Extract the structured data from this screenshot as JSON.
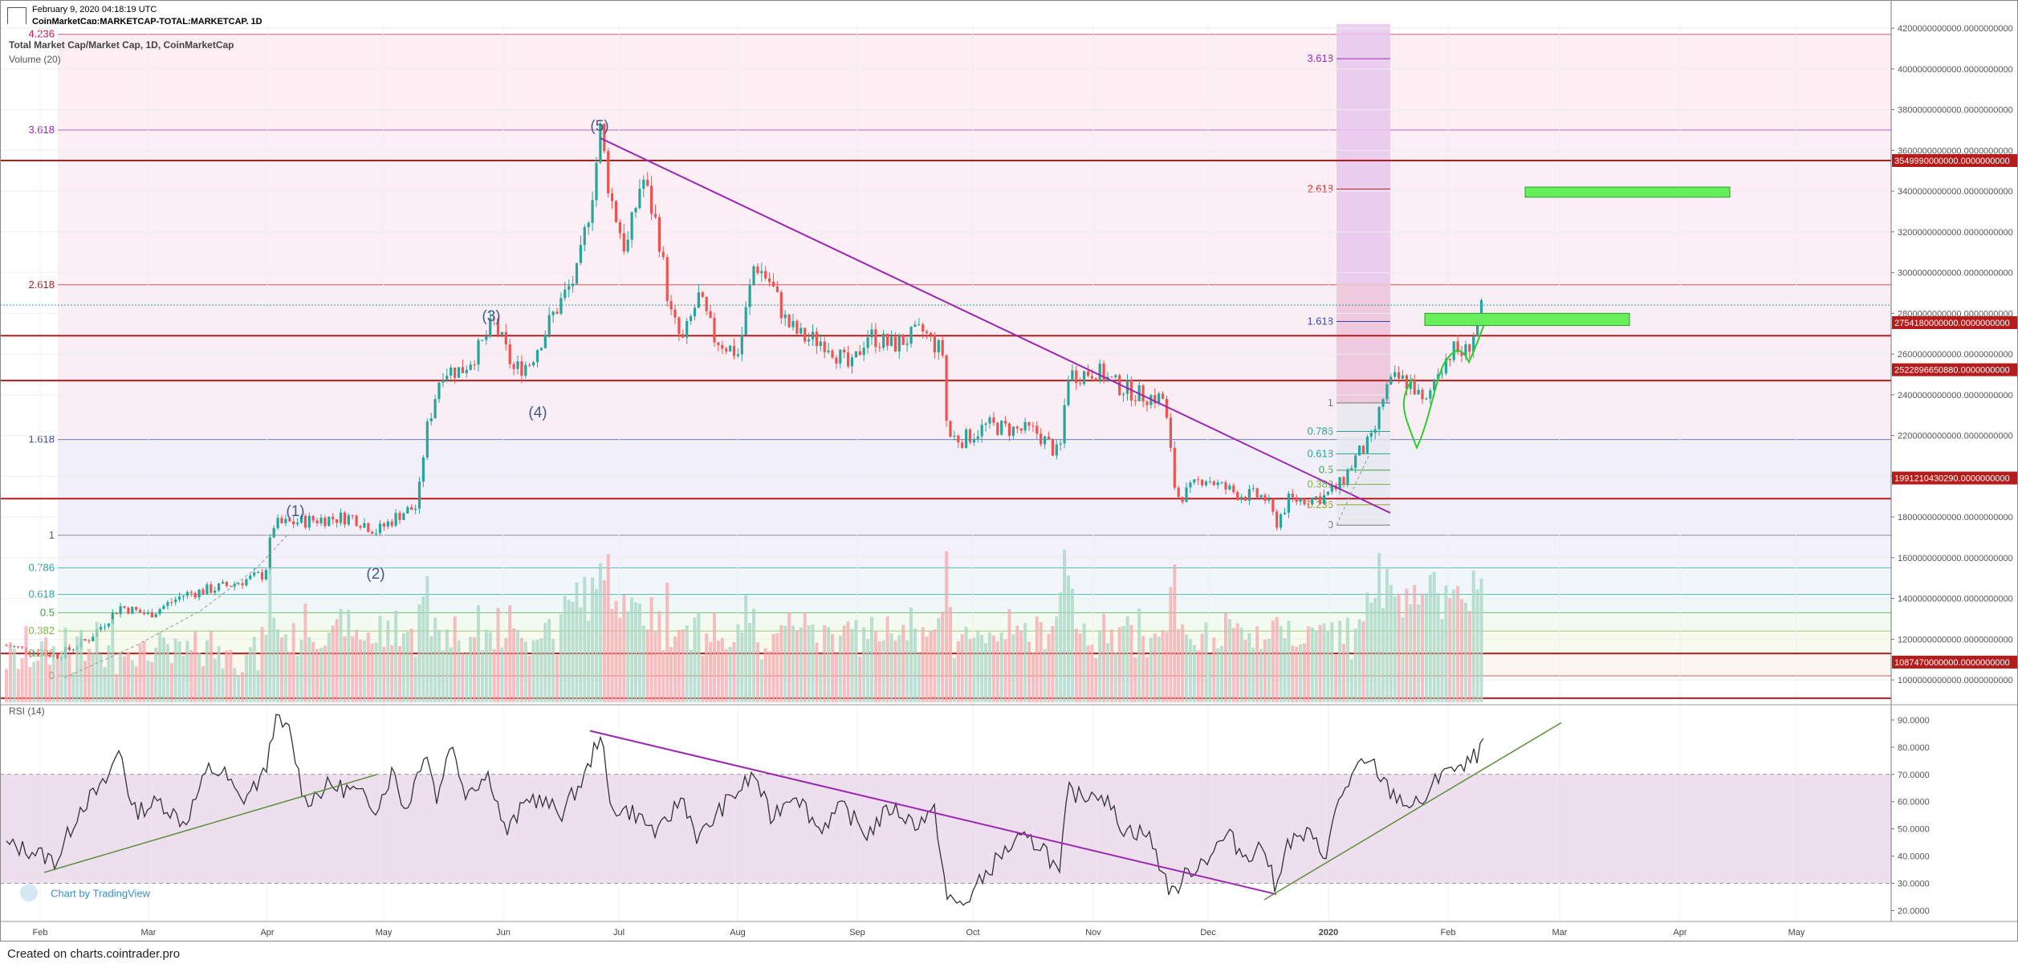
{
  "header": {
    "timestamp": "February 9, 2020 04:18:19 UTC",
    "symbol": "CoinMarketCap:MARKETCAP-TOTAL:MARKETCAP, 1D",
    "chart_title": "Total Market Cap/Market Cap, 1D, CoinMarketCap",
    "volume_label": "Volume (20)",
    "rsi_label": "RSI (14)",
    "tradingview_label": "Chart by TradingView"
  },
  "footer": {
    "text": "Created on charts.cointrader.pro"
  },
  "colors": {
    "up": "#26a69a",
    "down": "#ef5350",
    "trendline": "#9c27b0",
    "support": "#b71c1c",
    "target_box": "#66ef5a",
    "rsi_line": "#333333",
    "rsi_band": "#e8d4ea",
    "rsi_trend_green": "#5a8f3a"
  },
  "chart_data": [
    {
      "type": "candlestick",
      "title": "Total Market Cap/Market Cap, 1D, CoinMarketCap",
      "y_axis_ticks": [
        "4200000000000.0000000000",
        "4000000000000.0000000000",
        "3800000000000.0000000000",
        "3600000000000.0000000000",
        "3400000000000.0000000000",
        "3200000000000.0000000000",
        "3000000000000.0000000000",
        "2800000000000.0000000000",
        "2600000000000.0000000000",
        "2400000000000.0000000000",
        "2200000000000.0000000000",
        "2000000000000.0000000000",
        "1800000000000.0000000000",
        "1600000000000.0000000000",
        "1400000000000.0000000000",
        "1200000000000.0000000000",
        "1000000000000.0000000000"
      ],
      "ylim": [
        890000000000,
        4220000000000
      ],
      "x_ticks": [
        "Feb",
        "Mar",
        "Apr",
        "May",
        "Jun",
        "Jul",
        "Aug",
        "Sep",
        "Oct",
        "Nov",
        "Dec",
        "2020",
        "Feb",
        "Mar",
        "Apr",
        "May"
      ],
      "price_tags": [
        {
          "label": "3549990000000.0000000000",
          "value": 3549990000000
        },
        {
          "label": "2754180000000.0000000000",
          "value": 2754180000000
        },
        {
          "label": "2522896650880.0000000000",
          "value": 2522896650880
        },
        {
          "label": "1991210430290.0000000000",
          "value": 1991210430290
        },
        {
          "label": "1087470000000.0000000000",
          "value": 1087470000000
        }
      ],
      "support_lines": [
        3549990000000,
        2690000000000,
        2470000000000,
        1890000000000,
        1130000000000,
        910000000000
      ],
      "fib_left_labels": [
        {
          "label": "4.236",
          "value": 4170000000000
        },
        {
          "label": "3.618",
          "value": 3700000000000
        },
        {
          "label": "2.618",
          "value": 2940000000000
        },
        {
          "label": "1.618",
          "value": 2180000000000
        },
        {
          "label": "1",
          "value": 1710000000000
        },
        {
          "label": "0.786",
          "value": 1550000000000
        },
        {
          "label": "0.618",
          "value": 1420000000000
        },
        {
          "label": "0.5",
          "value": 1330000000000
        },
        {
          "label": "0.382",
          "value": 1240000000000
        },
        {
          "label": "0.236",
          "value": 1130000000000
        },
        {
          "label": "0",
          "value": 1020000000000
        }
      ],
      "fib_right_labels": [
        {
          "label": "3.618",
          "value": 4050000000000
        },
        {
          "label": "2.618",
          "value": 3410000000000
        },
        {
          "label": "1.618",
          "value": 2760000000000
        },
        {
          "label": "1",
          "value": 2360000000000
        },
        {
          "label": "0.786",
          "value": 2220000000000
        },
        {
          "label": "0.618",
          "value": 2110000000000
        },
        {
          "label": "0.5",
          "value": 2030000000000
        },
        {
          "label": "0.382",
          "value": 1960000000000
        },
        {
          "label": "0.236",
          "value": 1860000000000
        },
        {
          "label": "0",
          "value": 1760000000000
        }
      ],
      "wave_labels": [
        "(1)",
        "(2)",
        "(3)",
        "(4)",
        "(5)"
      ],
      "target_zones": [
        {
          "from": "Feb",
          "to": "Mar",
          "low": 3370000000000,
          "high": 3420000000000
        },
        {
          "from": "Jan",
          "to": "Mar",
          "low": 2740000000000,
          "high": 2800000000000
        }
      ],
      "series": [
        {
          "name": "close",
          "points": [
            [
              "Feb",
              1150000000000
            ],
            [
              "Mar",
              1350000000000
            ],
            [
              "Apr",
              1600000000000
            ],
            [
              "Apr-15",
              1800000000000
            ],
            [
              "May",
              1780000000000
            ],
            [
              "May-15",
              2300000000000
            ],
            [
              "Jun",
              2750000000000
            ],
            [
              "Jun-15",
              2550000000000
            ],
            [
              "Jun-26",
              3650000000000
            ],
            [
              "Jul",
              3300000000000
            ],
            [
              "Jul-15",
              2650000000000
            ],
            [
              "Aug",
              2600000000000
            ],
            [
              "Aug-10",
              3050000000000
            ],
            [
              "Sep",
              2550000000000
            ],
            [
              "Sep-20",
              2650000000000
            ],
            [
              "Oct",
              2200000000000
            ],
            [
              "Oct-25",
              2500000000000
            ],
            [
              "Nov",
              2420000000000
            ],
            [
              "Dec",
              1900000000000
            ],
            [
              "Dec-18",
              1760000000000
            ],
            [
              "2020",
              1900000000000
            ],
            [
              "Jan-15",
              2450000000000
            ],
            [
              "Jan-25",
              2350000000000
            ],
            [
              "Feb-08",
              2840000000000
            ]
          ]
        }
      ]
    },
    {
      "type": "line",
      "title": "RSI (14)",
      "y_axis_ticks": [
        "90.0000",
        "80.0000",
        "70.0000",
        "60.0000",
        "50.0000",
        "40.0000",
        "30.0000",
        "20.0000"
      ],
      "ylim": [
        16,
        95
      ],
      "overbought": 70,
      "oversold": 30,
      "series": [
        {
          "name": "RSI",
          "points": [
            [
              "Feb",
              44
            ],
            [
              "Feb-15",
              38
            ],
            [
              "Mar",
              64
            ],
            [
              "Mar-10",
              54
            ],
            [
              "Mar-20",
              68
            ],
            [
              "Apr",
              70
            ],
            [
              "Apr-05",
              88
            ],
            [
              "Apr-15",
              86
            ],
            [
              "Apr-20",
              68
            ],
            [
              "May",
              48
            ],
            [
              "May-10",
              62
            ],
            [
              "May-20",
              80
            ],
            [
              "Jun",
              68
            ],
            [
              "Jun-15",
              58
            ],
            [
              "Jun-26",
              85
            ],
            [
              "Jul",
              58
            ],
            [
              "Jul-15",
              45
            ],
            [
              "Aug",
              56
            ],
            [
              "Aug-10",
              68
            ],
            [
              "Sep",
              48
            ],
            [
              "Sep-20",
              46
            ],
            [
              "Sep-25",
              24
            ],
            [
              "Oct",
              32
            ],
            [
              "Oct-20",
              48
            ],
            [
              "Oct-28",
              64
            ],
            [
              "Nov",
              58
            ],
            [
              "Nov-20",
              45
            ],
            [
              "Dec",
              42
            ],
            [
              "Dec-05",
              28
            ],
            [
              "Dec-18",
              26
            ],
            [
              "Dec-25",
              42
            ],
            [
              "2020",
              44
            ],
            [
              "Jan-10",
              72
            ],
            [
              "Jan-20",
              68
            ],
            [
              "Jan-28",
              58
            ],
            [
              "Feb",
              74
            ],
            [
              "Feb-08",
              80
            ]
          ]
        }
      ]
    }
  ]
}
